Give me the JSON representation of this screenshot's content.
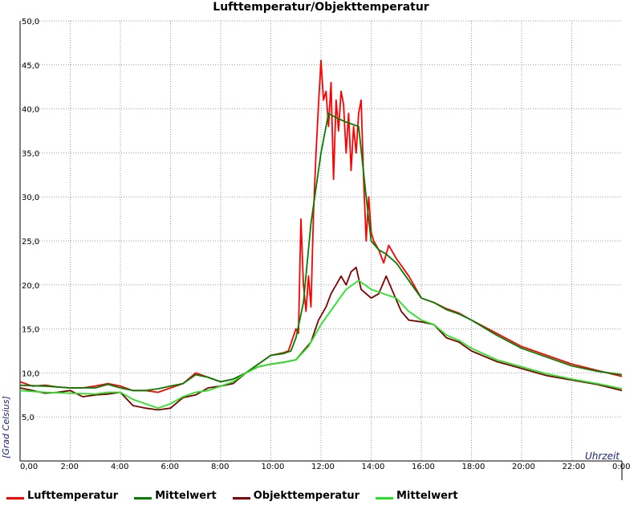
{
  "chart_data": {
    "type": "line",
    "title": "Lufttemperatur/Objekttemperatur",
    "xlabel": "Uhrzeit",
    "ylabel": "[Grad Celsius]",
    "x_unit": "hours",
    "xlim": [
      0,
      24
    ],
    "ylim": [
      0,
      50
    ],
    "x_tick_labels": [
      "0,00",
      "2:00",
      "4:00",
      "6:00",
      "8:00",
      "10:00",
      "12:00",
      "14:00",
      "16:00",
      "18:00",
      "20:00",
      "22:00",
      "0:00"
    ],
    "y_tick_labels": [
      "5,0",
      "10,0",
      "15,0",
      "20,0",
      "25,0",
      "30,0",
      "35,0",
      "40,0",
      "45,0",
      "50,0"
    ],
    "y_tick_values": [
      5,
      10,
      15,
      20,
      25,
      30,
      35,
      40,
      45,
      50
    ],
    "grid": true,
    "legend_position": "bottom",
    "series": [
      {
        "name": "Lufttemperatur",
        "color": "#ff0000",
        "x": [
          0,
          0.5,
          1,
          1.5,
          2,
          2.5,
          3,
          3.5,
          4,
          4.5,
          5,
          5.5,
          6,
          6.5,
          7,
          7.5,
          8,
          8.5,
          9,
          9.5,
          10,
          10.5,
          10.7,
          11,
          11.1,
          11.2,
          11.3,
          11.4,
          11.5,
          11.6,
          11.7,
          11.8,
          11.9,
          12.0,
          12.1,
          12.2,
          12.3,
          12.4,
          12.5,
          12.6,
          12.7,
          12.8,
          12.9,
          13.0,
          13.1,
          13.2,
          13.3,
          13.4,
          13.5,
          13.6,
          13.7,
          13.8,
          13.9,
          14.0,
          14.1,
          14.3,
          14.5,
          14.7,
          15.0,
          15.5,
          16.0,
          16.5,
          17,
          17.5,
          18,
          19,
          20,
          21,
          22,
          23,
          24
        ],
        "y": [
          9.0,
          8.5,
          8.6,
          8.4,
          8.3,
          8.3,
          8.5,
          8.8,
          8.5,
          8.0,
          8.0,
          7.8,
          8.3,
          8.8,
          10.0,
          9.5,
          9.0,
          9.3,
          10.0,
          11.0,
          12.0,
          12.3,
          12.5,
          15.0,
          14.5,
          27.5,
          20.0,
          17.0,
          21.0,
          17.5,
          28.0,
          35.0,
          40.5,
          45.5,
          41.0,
          42.0,
          38.0,
          43.0,
          32.0,
          41.0,
          37.5,
          42.0,
          40.5,
          35.0,
          39.5,
          33.0,
          38.0,
          35.0,
          39.5,
          41.0,
          32.0,
          25.0,
          30.0,
          26.0,
          25.0,
          24.0,
          22.5,
          24.5,
          23.0,
          21.0,
          18.5,
          18.0,
          17.3,
          16.8,
          16.0,
          14.5,
          13.0,
          12.0,
          11.0,
          10.3,
          9.6
        ]
      },
      {
        "name": "Mittelwert",
        "color": "#008000",
        "x": [
          0,
          1,
          2,
          3,
          3.5,
          4,
          4.5,
          5,
          5.5,
          6,
          6.5,
          7,
          7.5,
          8,
          8.5,
          9,
          9.5,
          10,
          10.5,
          10.8,
          11.0,
          11.3,
          11.6,
          12.0,
          12.3,
          12.6,
          13.0,
          13.5,
          13.8,
          14.0,
          14.3,
          14.6,
          15.0,
          15.5,
          16.0,
          16.5,
          17,
          17.5,
          18,
          19,
          20,
          21,
          22,
          23,
          24
        ],
        "y": [
          8.6,
          8.5,
          8.3,
          8.3,
          8.7,
          8.3,
          8.0,
          8.0,
          8.2,
          8.5,
          8.8,
          9.8,
          9.5,
          9.0,
          9.3,
          10.0,
          11.0,
          12.0,
          12.2,
          12.5,
          14.0,
          18.0,
          27.0,
          35.0,
          39.5,
          39.0,
          38.5,
          38.0,
          30.0,
          25.0,
          24.0,
          23.5,
          22.5,
          20.5,
          18.5,
          18.0,
          17.2,
          16.7,
          16.0,
          14.3,
          12.8,
          11.8,
          10.8,
          10.2,
          9.8
        ]
      },
      {
        "name": "Objekttemperatur",
        "color": "#800000",
        "x": [
          0,
          0.5,
          1,
          1.5,
          2,
          2.5,
          3,
          3.5,
          4,
          4.5,
          5,
          5.5,
          6,
          6.5,
          7,
          7.5,
          8,
          8.5,
          9,
          9.5,
          10,
          10.5,
          11,
          11.3,
          11.6,
          11.9,
          12.2,
          12.4,
          12.6,
          12.8,
          13.0,
          13.2,
          13.4,
          13.6,
          13.8,
          14.0,
          14.3,
          14.6,
          14.9,
          15.2,
          15.5,
          16.0,
          16.5,
          17,
          17.5,
          18,
          19,
          20,
          21,
          22,
          23,
          24
        ],
        "y": [
          8.3,
          8.0,
          7.7,
          7.8,
          8.0,
          7.3,
          7.5,
          7.6,
          7.8,
          6.3,
          6.0,
          5.8,
          6.0,
          7.2,
          7.5,
          8.3,
          8.5,
          8.8,
          10.0,
          10.7,
          11.0,
          11.2,
          11.5,
          12.5,
          13.5,
          16.0,
          17.5,
          19.0,
          20.0,
          21.0,
          20.0,
          21.5,
          22.0,
          19.5,
          19.0,
          18.5,
          19.0,
          21.0,
          19.0,
          17.0,
          16.0,
          15.8,
          15.5,
          14.0,
          13.5,
          12.5,
          11.3,
          10.5,
          9.7,
          9.2,
          8.7,
          8.0
        ]
      },
      {
        "name": "Mittelwert",
        "color": "#22e622",
        "x": [
          0,
          1,
          2,
          3,
          3.5,
          4,
          4.5,
          5,
          5.5,
          6,
          6.5,
          7,
          7.5,
          8,
          8.5,
          9,
          9.5,
          10,
          10.5,
          11,
          11.5,
          12,
          12.5,
          13,
          13.5,
          14,
          14.5,
          15,
          15.5,
          16,
          16.5,
          17,
          17.5,
          18,
          19,
          20,
          21,
          22,
          23,
          24
        ],
        "y": [
          8.0,
          7.8,
          7.7,
          7.6,
          7.8,
          7.8,
          7.0,
          6.5,
          6.0,
          6.5,
          7.3,
          7.8,
          8.0,
          8.5,
          9.0,
          10.0,
          10.7,
          11.0,
          11.2,
          11.5,
          13.0,
          15.5,
          17.5,
          19.5,
          20.5,
          19.5,
          19.0,
          18.5,
          17.0,
          16.0,
          15.5,
          14.3,
          13.7,
          12.8,
          11.5,
          10.7,
          9.9,
          9.3,
          8.8,
          8.2
        ]
      }
    ]
  }
}
